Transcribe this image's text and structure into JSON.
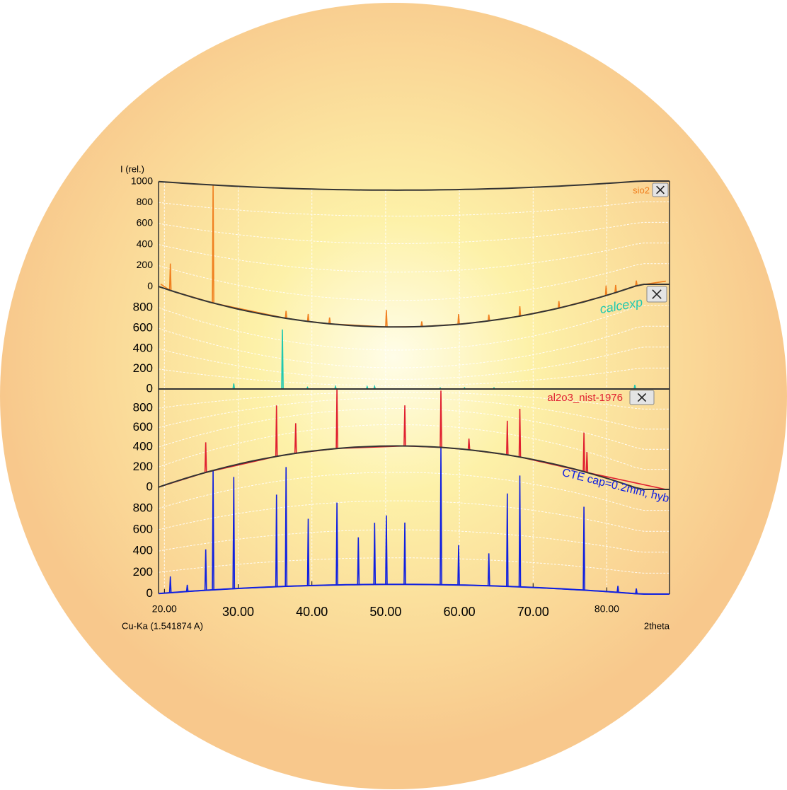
{
  "chart_data": [
    {
      "type": "line",
      "ylabel": "I (rel.)",
      "ylim": [
        0,
        1000
      ],
      "yticks": [
        0,
        200,
        400,
        600,
        800,
        1000
      ],
      "grid": true,
      "series": [
        {
          "name": "sio2",
          "color": "#f08020",
          "x": [
            19.5,
            20.7,
            20.8,
            20.9,
            26.5,
            26.6,
            26.7,
            36.4,
            36.5,
            36.6,
            39.4,
            39.5,
            39.6,
            42.3,
            42.4,
            42.5,
            50.0,
            50.1,
            50.2,
            54.8,
            54.9,
            55.0,
            59.8,
            59.9,
            60.0,
            63.9,
            64.0,
            64.1,
            68.1,
            68.2,
            68.3,
            73.4,
            73.5,
            73.6,
            79.8,
            79.9,
            80.0,
            81.1,
            81.2,
            81.3,
            83.9,
            84.0,
            84.1,
            88.0
          ],
          "values": [
            30,
            0,
            250,
            0,
            0,
            1000,
            0,
            0,
            60,
            0,
            0,
            60,
            0,
            0,
            50,
            0,
            0,
            130,
            0,
            0,
            40,
            0,
            0,
            80,
            0,
            0,
            50,
            0,
            0,
            80,
            0,
            0,
            60,
            0,
            0,
            90,
            0,
            0,
            70,
            0,
            0,
            50,
            0,
            30
          ]
        }
      ]
    },
    {
      "type": "line",
      "ylim": [
        0,
        1000
      ],
      "yticks": [
        0,
        200,
        400,
        600,
        800
      ],
      "grid": true,
      "series": [
        {
          "name": "calcexp",
          "color": "#20c8b0",
          "x": [
            19.5,
            29.3,
            29.4,
            29.5,
            35.9,
            36.0,
            36.1,
            39.3,
            39.4,
            39.5,
            43.1,
            43.2,
            43.3,
            47.4,
            47.5,
            47.6,
            48.4,
            48.5,
            48.6,
            57.3,
            57.4,
            57.5,
            60.6,
            60.7,
            60.8,
            64.6,
            64.7,
            64.8,
            83.7,
            83.8,
            83.9,
            88.0
          ],
          "values": [
            0,
            0,
            100,
            0,
            0,
            900,
            0,
            0,
            60,
            0,
            0,
            120,
            0,
            0,
            140,
            0,
            0,
            150,
            0,
            0,
            60,
            0,
            0,
            50,
            0,
            0,
            40,
            0,
            0,
            40,
            0,
            0
          ]
        }
      ]
    },
    {
      "type": "line",
      "ylim": [
        0,
        1000
      ],
      "yticks": [
        0,
        200,
        400,
        600,
        800
      ],
      "grid": true,
      "series": [
        {
          "name": "al2o3_nist-1976",
          "color": "#e02030",
          "x": [
            19.5,
            25.5,
            25.6,
            25.7,
            35.1,
            35.2,
            35.3,
            37.7,
            37.8,
            37.9,
            43.3,
            43.4,
            43.5,
            52.5,
            52.6,
            52.7,
            57.4,
            57.5,
            57.6,
            61.2,
            61.3,
            61.4,
            66.4,
            66.5,
            66.6,
            68.1,
            68.2,
            68.3,
            76.8,
            76.9,
            77.0,
            77.2,
            77.3,
            77.4,
            88.0
          ],
          "values": [
            0,
            0,
            300,
            0,
            0,
            600,
            0,
            0,
            300,
            0,
            0,
            1000,
            0,
            0,
            450,
            0,
            0,
            900,
            0,
            0,
            100,
            0,
            0,
            350,
            0,
            0,
            550,
            0,
            0,
            400,
            0,
            0,
            200,
            0,
            0
          ]
        }
      ]
    },
    {
      "type": "line",
      "ylim": [
        0,
        1000
      ],
      "yticks": [
        0,
        200,
        400,
        600,
        800
      ],
      "grid": true,
      "xlabel": "2theta",
      "annotation": "Cu-Ka (1.541874 A)",
      "xlim": [
        19.2,
        88.5
      ],
      "xticks": [
        {
          "value": 20,
          "label": "20.00"
        },
        {
          "value": 30,
          "label": "30.00"
        },
        {
          "value": 40,
          "label": "40.00"
        },
        {
          "value": 50,
          "label": "50.00"
        },
        {
          "value": 60,
          "label": "60.00"
        },
        {
          "value": 70,
          "label": "70.00"
        },
        {
          "value": 80,
          "label": "80.00"
        }
      ],
      "series": [
        {
          "name": "CTE cap=0.2mm, hyb",
          "color": "#1020e0",
          "x": [
            19.5,
            20.7,
            20.8,
            20.9,
            23.0,
            23.1,
            23.2,
            25.5,
            25.6,
            25.7,
            26.5,
            26.6,
            26.7,
            29.3,
            29.4,
            29.5,
            35.1,
            35.2,
            35.3,
            36.4,
            36.5,
            36.6,
            39.4,
            39.5,
            39.6,
            43.3,
            43.4,
            43.5,
            46.2,
            46.3,
            46.4,
            48.4,
            48.5,
            48.6,
            50.0,
            50.1,
            50.2,
            52.5,
            52.6,
            52.7,
            57.4,
            57.5,
            57.6,
            59.8,
            59.9,
            60.0,
            63.9,
            64.0,
            64.1,
            66.4,
            66.5,
            66.6,
            68.1,
            68.2,
            68.3,
            76.8,
            76.9,
            77.0,
            81.4,
            81.5,
            81.6,
            83.9,
            84.0,
            84.1,
            88.0
          ],
          "values": [
            0,
            0,
            150,
            0,
            0,
            60,
            0,
            0,
            350,
            0,
            0,
            1000,
            0,
            0,
            900,
            0,
            0,
            700,
            0,
            0,
            900,
            0,
            0,
            500,
            0,
            0,
            600,
            0,
            0,
            350,
            0,
            0,
            450,
            0,
            0,
            500,
            0,
            0,
            450,
            0,
            0,
            1000,
            0,
            0,
            300,
            0,
            0,
            250,
            0,
            0,
            700,
            0,
            0,
            850,
            0,
            0,
            700,
            0,
            0,
            60,
            0,
            0,
            50,
            0,
            0
          ]
        }
      ]
    }
  ]
}
